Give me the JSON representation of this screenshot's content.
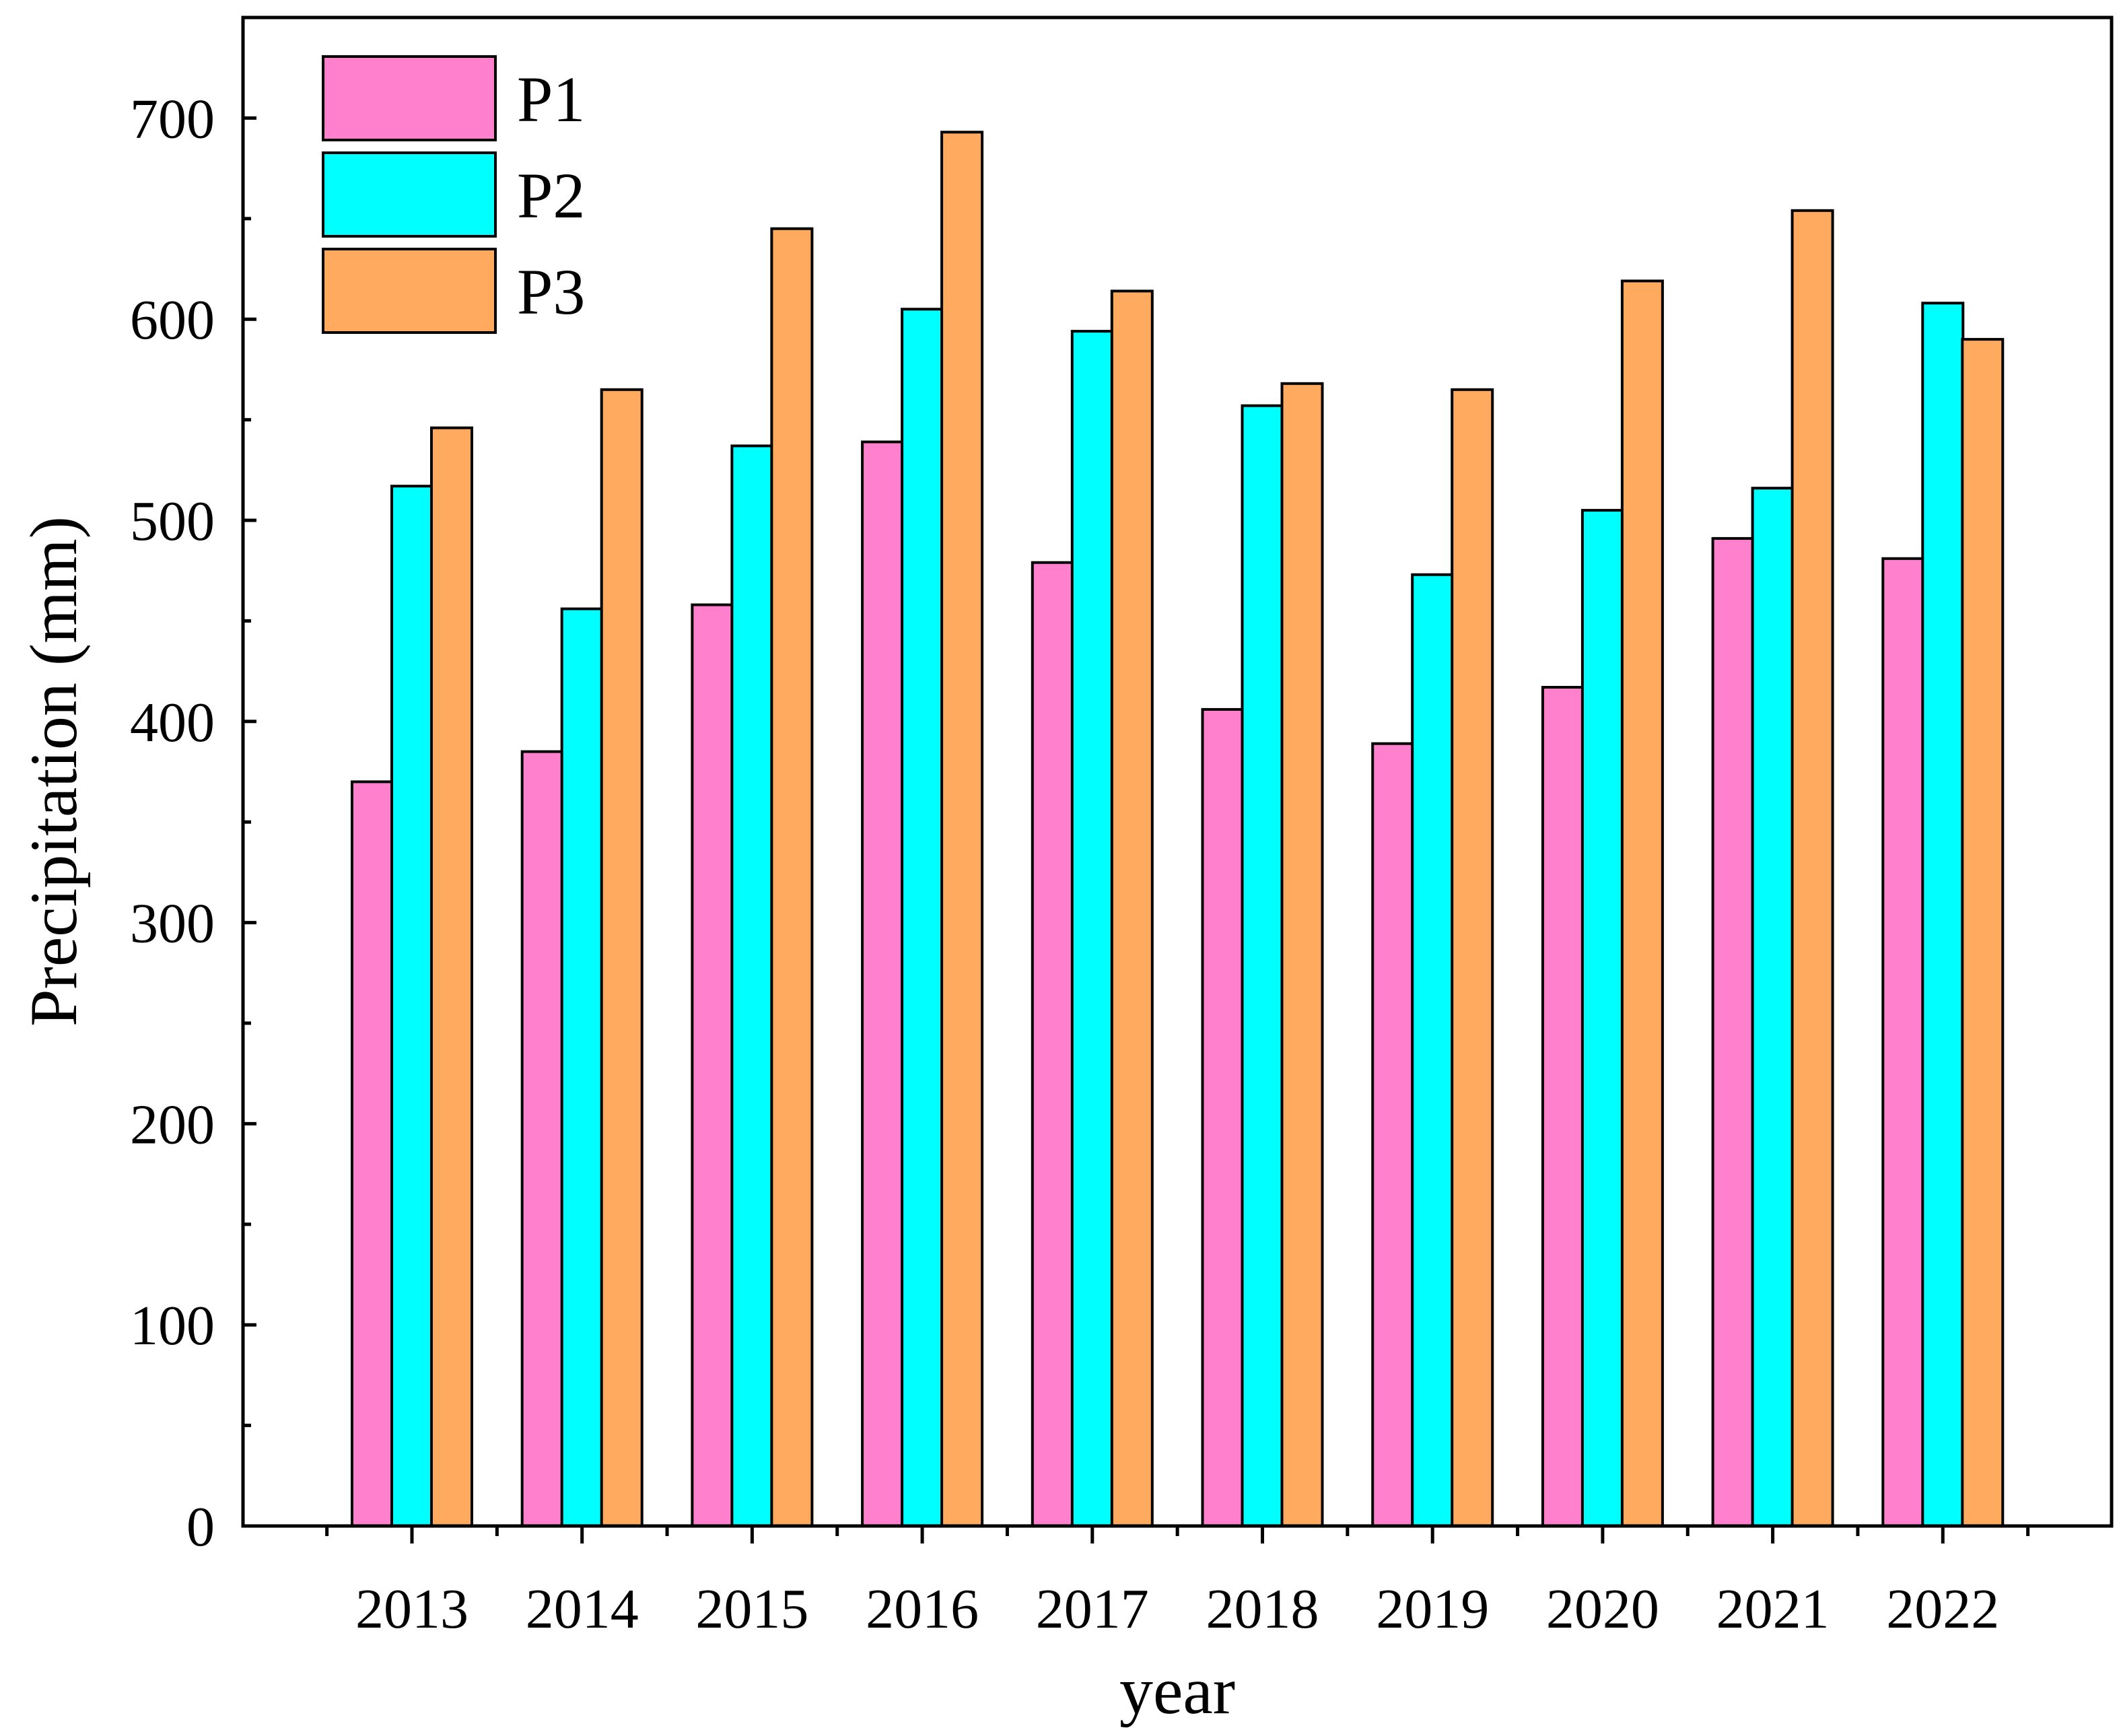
{
  "chart_data": {
    "type": "bar",
    "title": "",
    "xlabel": "year",
    "ylabel": "Precipitation (mm)",
    "ylim": [
      0,
      750
    ],
    "yticks": [
      "0",
      "100",
      "200",
      "300",
      "400",
      "500",
      "600",
      "700"
    ],
    "categories": [
      "2013",
      "2014",
      "2015",
      "2016",
      "2017",
      "2018",
      "2019",
      "2020",
      "2021",
      "2022"
    ],
    "series": [
      {
        "name": "P1",
        "color": "#FF80CC",
        "values": [
          370,
          385,
          458,
          539,
          479,
          406,
          389,
          417,
          491,
          481
        ]
      },
      {
        "name": "P2",
        "color": "#00FFFF",
        "values": [
          517,
          456,
          537,
          605,
          594,
          557,
          473,
          505,
          516,
          608
        ]
      },
      {
        "name": "P3",
        "color": "#FFAA5E",
        "values": [
          546,
          565,
          645,
          693,
          614,
          568,
          565,
          619,
          654,
          590
        ]
      }
    ],
    "legend_position": "top-left",
    "grid": false
  }
}
